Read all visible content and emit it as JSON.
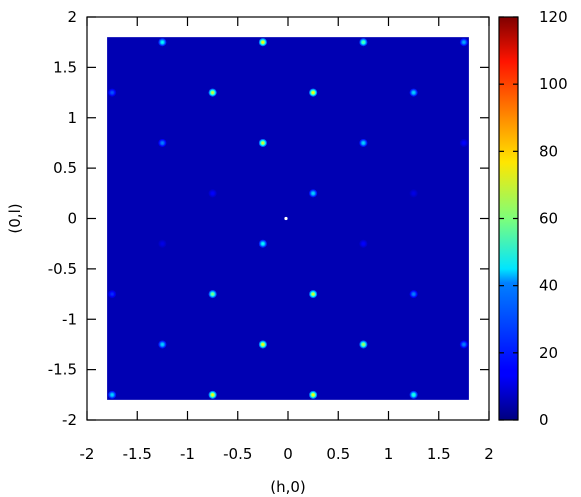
{
  "chart_data": {
    "type": "heatmap",
    "title": "",
    "xlabel": "(h,0)",
    "ylabel": "(0,l)",
    "xlim": [
      -2,
      2
    ],
    "ylim": [
      -2,
      2
    ],
    "data_extent": {
      "x": [
        -1.8,
        1.8
      ],
      "y": [
        -1.8,
        1.8
      ]
    },
    "xticks": [
      -2,
      -1.5,
      -1,
      -0.5,
      0,
      0.5,
      1,
      1.5,
      2
    ],
    "yticks": [
      -2,
      -1.5,
      -1,
      -0.5,
      0,
      0.5,
      1,
      1.5,
      2
    ],
    "xtick_labels": [
      "-2",
      "-1.5",
      "-1",
      "-0.5",
      "0",
      "0.5",
      "1",
      "1.5",
      "2"
    ],
    "ytick_labels": [
      "-2",
      "-1.5",
      "-1",
      "-0.5",
      "0",
      "0.5",
      "1",
      "1.5",
      "2"
    ],
    "colorbar": {
      "range": [
        0,
        120
      ],
      "ticks": [
        0,
        20,
        40,
        60,
        80,
        100,
        120
      ],
      "tick_labels": [
        "0",
        "20",
        "40",
        "60",
        "80",
        "100",
        "120"
      ],
      "colormap": "jet"
    },
    "background_value": 6,
    "peaks": [
      {
        "h": -1.25,
        "l": 1.75,
        "value": 45
      },
      {
        "h": -0.25,
        "l": 1.75,
        "value": 75
      },
      {
        "h": 0.75,
        "l": 1.75,
        "value": 55
      },
      {
        "h": 1.75,
        "l": 1.75,
        "value": 35
      },
      {
        "h": -1.75,
        "l": 1.25,
        "value": 25
      },
      {
        "h": -0.75,
        "l": 1.25,
        "value": 70
      },
      {
        "h": 0.25,
        "l": 1.25,
        "value": 75
      },
      {
        "h": 1.25,
        "l": 1.25,
        "value": 40
      },
      {
        "h": -1.25,
        "l": 0.75,
        "value": 30
      },
      {
        "h": -0.25,
        "l": 0.75,
        "value": 70
      },
      {
        "h": 0.75,
        "l": 0.75,
        "value": 40
      },
      {
        "h": 1.75,
        "l": 0.75,
        "value": 15
      },
      {
        "h": -0.75,
        "l": 0.25,
        "value": 15
      },
      {
        "h": 0.25,
        "l": 0.25,
        "value": 40
      },
      {
        "h": 1.25,
        "l": 0.25,
        "value": 12
      },
      {
        "h": -0.25,
        "l": -0.25,
        "value": 45
      },
      {
        "h": 0.75,
        "l": -0.25,
        "value": 15
      },
      {
        "h": -1.25,
        "l": -0.25,
        "value": 12
      },
      {
        "h": -1.75,
        "l": -0.75,
        "value": 20
      },
      {
        "h": -0.75,
        "l": -0.75,
        "value": 60
      },
      {
        "h": 0.25,
        "l": -0.75,
        "value": 70
      },
      {
        "h": 1.25,
        "l": -0.75,
        "value": 30
      },
      {
        "h": -1.25,
        "l": -1.25,
        "value": 40
      },
      {
        "h": -0.25,
        "l": -1.25,
        "value": 75
      },
      {
        "h": 0.75,
        "l": -1.25,
        "value": 65
      },
      {
        "h": 1.75,
        "l": -1.25,
        "value": 30
      },
      {
        "h": -1.75,
        "l": -1.75,
        "value": 40
      },
      {
        "h": -0.75,
        "l": -1.75,
        "value": 75
      },
      {
        "h": 0.25,
        "l": -1.75,
        "value": 75
      },
      {
        "h": 1.25,
        "l": -1.75,
        "value": 50
      },
      {
        "h": -0.02,
        "l": 0.0,
        "value": 120
      }
    ]
  }
}
